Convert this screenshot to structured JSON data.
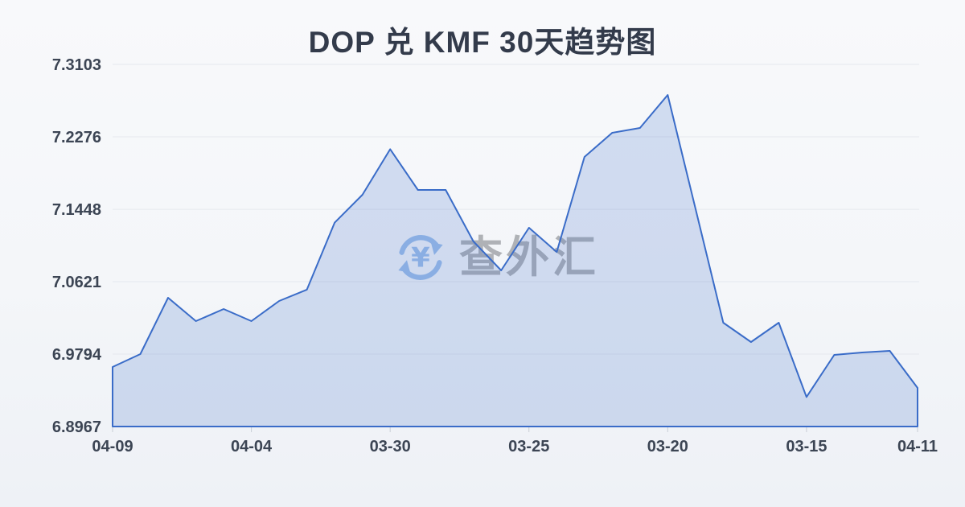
{
  "chart_data": {
    "type": "area",
    "title": "DOP 兑 KMF 30天趋势图",
    "y_ticks": [
      6.8967,
      6.9794,
      7.0621,
      7.1448,
      7.2276,
      7.3103
    ],
    "ylim": [
      6.8967,
      7.3103
    ],
    "x_tick_labels": [
      "04-09",
      "04-04",
      "03-30",
      "03-25",
      "03-20",
      "03-15",
      "04-11"
    ],
    "x_tick_indices": [
      0,
      5,
      10,
      15,
      20,
      25,
      29
    ],
    "values": [
      6.9647,
      6.9794,
      7.0438,
      7.0171,
      7.0309,
      7.0171,
      7.0401,
      7.053,
      7.1295,
      7.1614,
      7.2134,
      7.1669,
      7.1669,
      7.1081,
      7.075,
      7.1237,
      7.0961,
      7.2046,
      7.2322,
      7.2377,
      7.2754,
      7.1454,
      7.0153,
      6.9932,
      7.0153,
      6.9304,
      6.9785,
      6.9813,
      6.9831,
      6.9408
    ],
    "grid": true,
    "legend": false,
    "colors": {
      "line": "#3a6cc8",
      "fill": "rgba(61,110,200,0.20)",
      "grid": "#e5e8ee",
      "axis_label": "#3c4554",
      "tick_mark": "#c9ced6",
      "title": "#333b4b"
    }
  },
  "watermark": {
    "icon": "currency-exchange-icon",
    "text": "查外汇",
    "icon_color": "#93b7e8"
  }
}
